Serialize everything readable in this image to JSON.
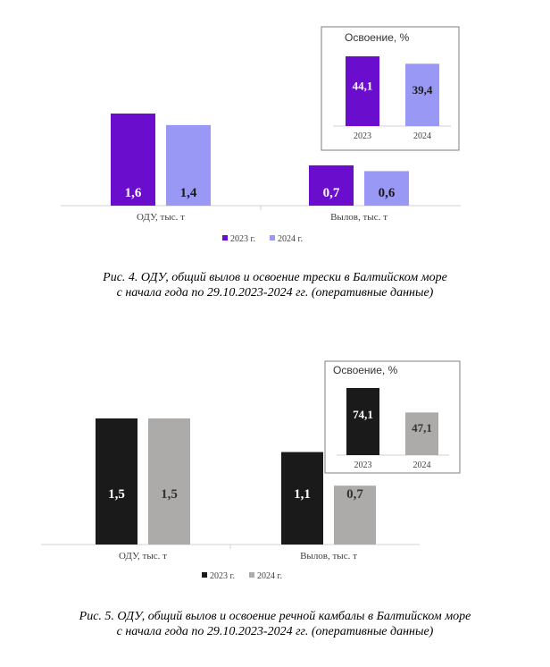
{
  "figures": [
    {
      "caption_line1": "Рис. 4. ОДУ, общий вылов и освоение трески в Балтийском море",
      "caption_line2": "с начала года по 29.10.2023-2024 гг. (оперативные данные)",
      "colors": {
        "s2023": "#6a0dcc",
        "s2024": "#9999f5",
        "label2023": "#ffffff",
        "label2024": "#1a1a1a"
      }
    },
    {
      "caption_line1": "Рис. 5. ОДУ, общий вылов и освоение речной камбалы в Балтийском море",
      "caption_line2": "с начала года по 29.10.2023-2024 гг. (оперативные данные)",
      "colors": {
        "s2023": "#1a1a1a",
        "s2024": "#adaaaa",
        "label2023": "#ffffff",
        "label2024": "#333333"
      }
    }
  ],
  "chart_data": [
    {
      "type": "bar",
      "categories": [
        "ОДУ, тыс. т",
        "Вылов, тыс. т"
      ],
      "series": [
        {
          "name": "2023 г.",
          "values": [
            1.6,
            0.7
          ],
          "labels": [
            "1,6",
            "0,7"
          ]
        },
        {
          "name": "2024 г.",
          "values": [
            1.4,
            0.6
          ],
          "labels": [
            "1,4",
            "0,6"
          ]
        }
      ],
      "ylim": [
        0,
        1.6
      ],
      "legend": "bottom",
      "grid": false
    },
    {
      "type": "bar",
      "title": "Освоение, %",
      "categories": [
        "2023",
        "2024"
      ],
      "values": [
        44.1,
        39.4
      ],
      "labels": [
        "44,1",
        "39,4"
      ],
      "ylim": [
        0,
        44.1
      ]
    },
    {
      "type": "bar",
      "categories": [
        "ОДУ, тыс. т",
        "Вылов, тыс. т"
      ],
      "series": [
        {
          "name": "2023 г.",
          "values": [
            1.5,
            1.1
          ],
          "labels": [
            "1,5",
            "1,1"
          ]
        },
        {
          "name": "2024 г.",
          "values": [
            1.5,
            0.7
          ],
          "labels": [
            "1,5",
            "0,7"
          ]
        }
      ],
      "ylim": [
        0,
        1.5
      ],
      "legend": "bottom",
      "grid": false
    },
    {
      "type": "bar",
      "title": "Освоение, %",
      "categories": [
        "2023",
        "2024"
      ],
      "values": [
        74.1,
        47.1
      ],
      "labels": [
        "74,1",
        "47,1"
      ],
      "ylim": [
        0,
        74.1
      ]
    }
  ]
}
